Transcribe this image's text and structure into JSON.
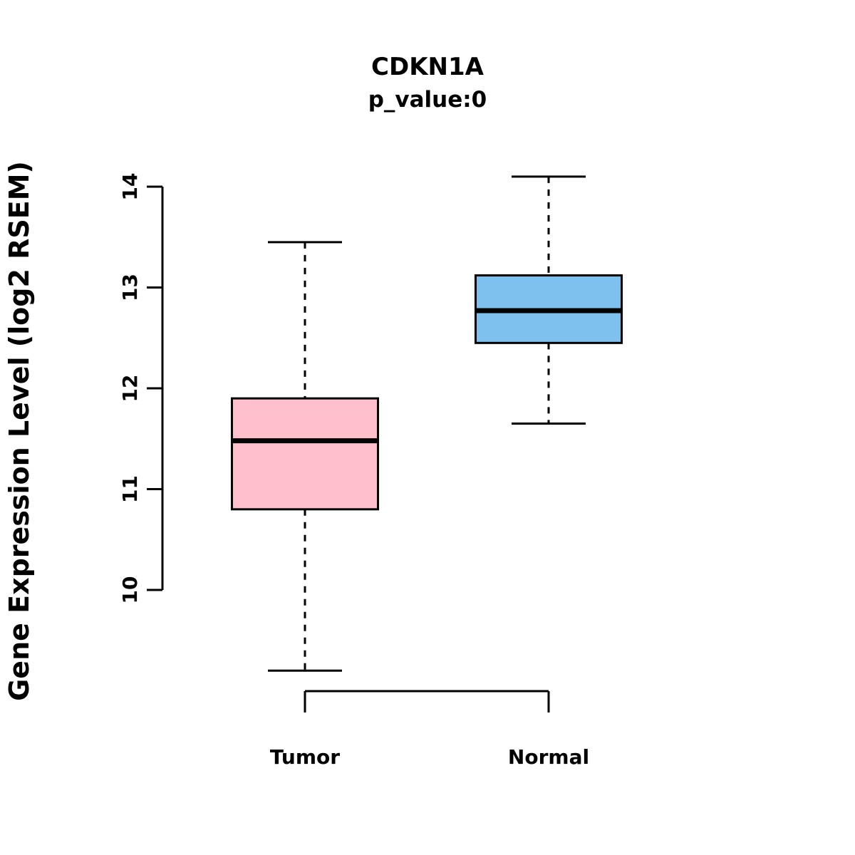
{
  "title": "CDKN1A",
  "subtitle": "p_value:0",
  "chart_data": {
    "type": "boxplot",
    "title": "CDKN1A",
    "subtitle": "p_value:0",
    "xlabel": "",
    "ylabel": "Gene Expression Level (log2 RSEM)",
    "categories": [
      "Tumor",
      "Normal"
    ],
    "y_ticks": [
      10,
      11,
      12,
      13,
      14
    ],
    "ylim": [
      9.0,
      14.3
    ],
    "grid": false,
    "legend": false,
    "axis_color": "#000000",
    "series": [
      {
        "name": "Tumor",
        "color": "#FFC0CB",
        "whisker_low": 9.2,
        "q1": 10.8,
        "median": 11.48,
        "q3": 11.9,
        "whisker_high": 13.45
      },
      {
        "name": "Normal",
        "color": "#7EC0EE",
        "whisker_low": 11.65,
        "q1": 12.45,
        "median": 12.77,
        "q3": 13.12,
        "whisker_high": 14.1
      }
    ]
  }
}
